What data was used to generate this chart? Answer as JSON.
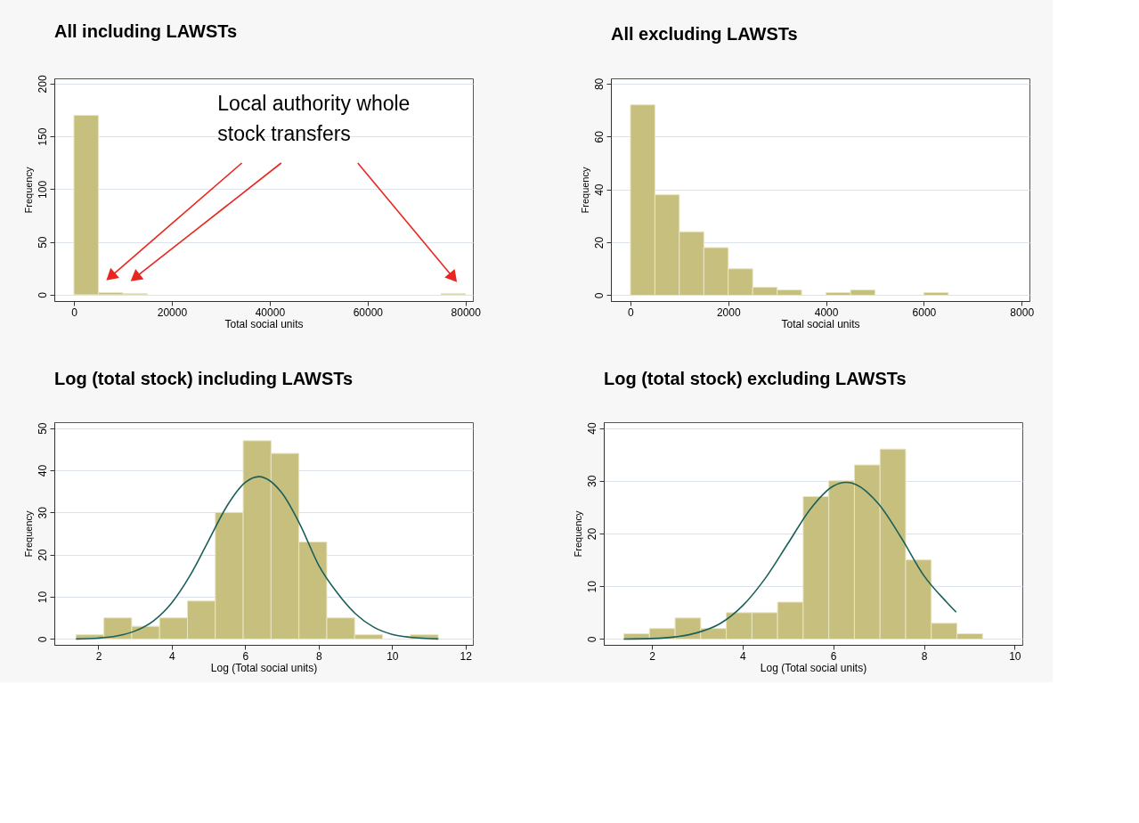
{
  "chart_data": [
    {
      "type": "histogram",
      "title": "All including LAWSTs",
      "xlabel": "Total social units",
      "ylabel": "Frequency",
      "color": "#c6bf7e",
      "grid": "y",
      "bins": [
        0,
        5000,
        10000,
        15000,
        20000,
        25000,
        30000,
        35000,
        40000,
        45000,
        50000,
        55000,
        60000,
        65000,
        70000,
        75000,
        80000
      ],
      "values": [
        170,
        2,
        1,
        0,
        0,
        0,
        0,
        0,
        0,
        0,
        0,
        0,
        0,
        0,
        0,
        1
      ],
      "xlim": [
        -4000,
        81500
      ],
      "xticks": [
        0,
        20000,
        40000,
        60000,
        80000
      ],
      "ylim": [
        -6,
        205
      ],
      "yticks": [
        0,
        50,
        100,
        150,
        200
      ],
      "annotations": [
        "Local authority whole stock transfers"
      ]
    },
    {
      "type": "histogram",
      "title": "All excluding LAWSTs",
      "xlabel": "Total social units",
      "ylabel": "Frequency",
      "color": "#c6bf7e",
      "grid": "y",
      "bins": [
        0,
        500,
        1000,
        1500,
        2000,
        2500,
        3000,
        3500,
        4000,
        4500,
        5000,
        5500,
        6000,
        6500
      ],
      "values": [
        72,
        38,
        24,
        18,
        10,
        3,
        2,
        0,
        1,
        2,
        0,
        0,
        1
      ],
      "xlim": [
        -400,
        8160
      ],
      "xticks": [
        0,
        2000,
        4000,
        6000,
        8000
      ],
      "ylim": [
        -2.2,
        82
      ],
      "yticks": [
        0,
        20,
        40,
        60,
        80
      ]
    },
    {
      "type": "histogram",
      "title": "Log (total stock) including LAWSTs",
      "xlabel": "Log (Total social units)",
      "ylabel": "Frequency",
      "color": "#c6bf7e",
      "grid": "y",
      "bins": [
        1.39,
        2.149,
        2.908,
        3.667,
        4.426,
        5.185,
        5.944,
        6.703,
        7.462,
        8.221,
        8.98,
        9.739,
        10.498,
        11.257
      ],
      "values": [
        1,
        5,
        3,
        5,
        9,
        30,
        47,
        44,
        23,
        5,
        1,
        0,
        1
      ],
      "series": [
        {
          "type": "line",
          "color": "#1c5f5a",
          "x": [
            1.39,
            2,
            2.5,
            3,
            3.5,
            4,
            4.5,
            5,
            5.5,
            6,
            6.37,
            7,
            7.5,
            8,
            8.5,
            9,
            9.5,
            10,
            10.5,
            11.26
          ],
          "values": [
            0,
            0.2,
            0.7,
            1.9,
            4.3,
            8.6,
            15.1,
            23.3,
            31.5,
            37.1,
            38.5,
            34.6,
            27,
            17.5,
            11,
            6,
            2.8,
            1.1,
            0.4,
            0
          ]
        }
      ],
      "xlim": [
        0.8,
        12.2
      ],
      "xticks": [
        2,
        4,
        6,
        8,
        10,
        12
      ],
      "ylim": [
        -1.4,
        51.4
      ],
      "yticks": [
        0,
        10,
        20,
        30,
        40,
        50
      ]
    },
    {
      "type": "histogram",
      "title": "Log (total stock) excluding LAWSTs",
      "xlabel": "Log (Total social units)",
      "ylabel": "Frequency",
      "color": "#c6bf7e",
      "grid": "y",
      "bins": [
        1.382,
        1.947,
        2.512,
        3.077,
        3.642,
        4.207,
        4.772,
        5.337,
        5.902,
        6.467,
        7.032,
        7.597,
        8.162,
        8.727,
        9.292
      ],
      "values": [
        1,
        2,
        4,
        2,
        5,
        5,
        7,
        27,
        30,
        33,
        36,
        15,
        3,
        1
      ],
      "series": [
        {
          "type": "line",
          "color": "#1c5f5a",
          "x": [
            1.38,
            2,
            2.5,
            3,
            3.5,
            4,
            4.5,
            5,
            5.5,
            6,
            6.29,
            6.5,
            7,
            7.5,
            8,
            8.5,
            8.71
          ],
          "values": [
            0,
            0.1,
            0.4,
            1.2,
            2.9,
            6.3,
            11.5,
            18.1,
            24.7,
            29,
            29.7,
            29.3,
            25.6,
            19.2,
            12,
            7,
            5.1
          ]
        }
      ],
      "xlim": [
        0.94,
        10.17
      ],
      "xticks": [
        2,
        4,
        6,
        8,
        10
      ],
      "ylim": [
        -1.1,
        41.1
      ],
      "yticks": [
        0,
        10,
        20,
        30,
        40
      ]
    }
  ]
}
